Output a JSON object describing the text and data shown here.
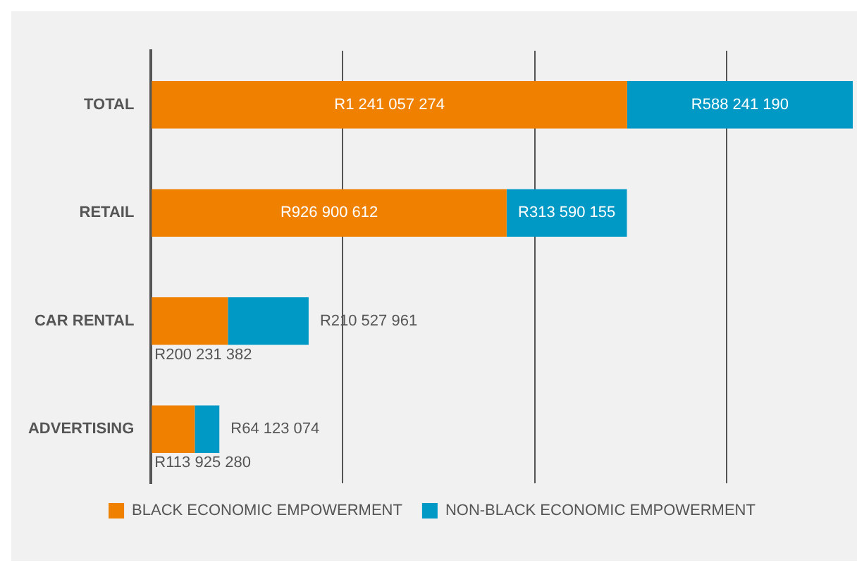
{
  "chart_data": {
    "type": "bar",
    "orientation": "horizontal",
    "stacked": true,
    "categories": [
      "TOTAL",
      "RETAIL",
      "CAR RENTAL",
      "ADVERTISING"
    ],
    "series": [
      {
        "name": "BLACK ECONOMIC EMPOWERMENT",
        "color": "#f08000",
        "values": [
          1241057274,
          926900612,
          200231382,
          113925280
        ],
        "value_labels": [
          "R1 241 057 274",
          "R926 900 612",
          "R200 231 382",
          "R113 925 280"
        ]
      },
      {
        "name": "NON-BLACK ECONOMIC EMPOWERMENT",
        "color": "#0099c6",
        "values": [
          588241190,
          313590155,
          210527961,
          64123074
        ],
        "value_labels": [
          "R588 241 190",
          "R313 590 155",
          "R210 527 961",
          "R64 123 074"
        ]
      }
    ],
    "xlim": [
      0,
      1829298464
    ],
    "xticks": [
      {
        "value": 0,
        "label": null
      },
      {
        "value": 500000000,
        "label": null
      },
      {
        "value": 1000000000,
        "label": null
      },
      {
        "value": 1500000000,
        "label": null
      }
    ],
    "tick_labels": "y",
    "grid": "x",
    "legend": "bottom"
  }
}
